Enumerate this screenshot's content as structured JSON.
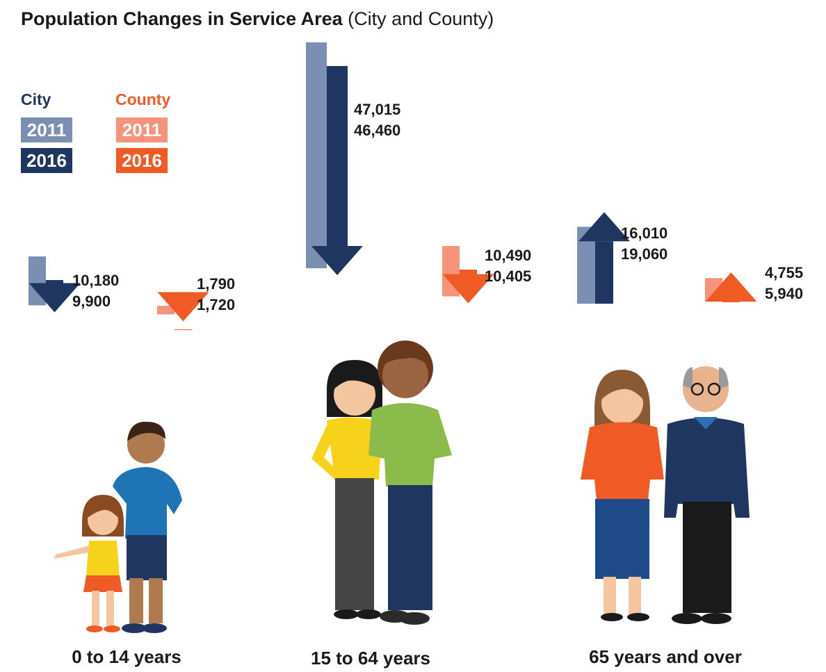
{
  "title": {
    "bold": "Population Changes in Service Area",
    "normal": "(City and County)"
  },
  "colors": {
    "city_2011": "#7b8fb3",
    "city_2016": "#1e3660",
    "county_2011": "#f5947a",
    "county_2016": "#f05a24"
  },
  "legend": {
    "city_label": "City",
    "county_label": "County",
    "year_2011": "2011",
    "year_2016": "2016"
  },
  "chart_data": {
    "type": "bar",
    "title": "Population Changes in Service Area (City and County)",
    "categories": [
      "0 to 14 years",
      "15 to 64 years",
      "65 years and over"
    ],
    "series": [
      {
        "name": "City 2011",
        "values": [
          10180,
          47015,
          16010
        ]
      },
      {
        "name": "City 2016",
        "values": [
          9900,
          46460,
          19060
        ]
      },
      {
        "name": "County 2011",
        "values": [
          1790,
          10490,
          4755
        ]
      },
      {
        "name": "County 2016",
        "values": [
          1720,
          10405,
          5940
        ]
      }
    ],
    "groups": [
      {
        "label": "0 to 14 years",
        "city": {
          "v2011": "10,180",
          "v2016": "9,900",
          "direction": "down"
        },
        "county": {
          "v2011": "1,790",
          "v2016": "1,720",
          "direction": "down"
        }
      },
      {
        "label": "15 to 64 years",
        "city": {
          "v2011": "47,015",
          "v2016": "46,460",
          "direction": "down"
        },
        "county": {
          "v2011": "10,490",
          "v2016": "10,405",
          "direction": "down"
        }
      },
      {
        "label": "65 years and over",
        "city": {
          "v2011": "16,010",
          "v2016": "19,060",
          "direction": "up"
        },
        "county": {
          "v2011": "4,755",
          "v2016": "5,940",
          "direction": "up"
        }
      }
    ]
  }
}
